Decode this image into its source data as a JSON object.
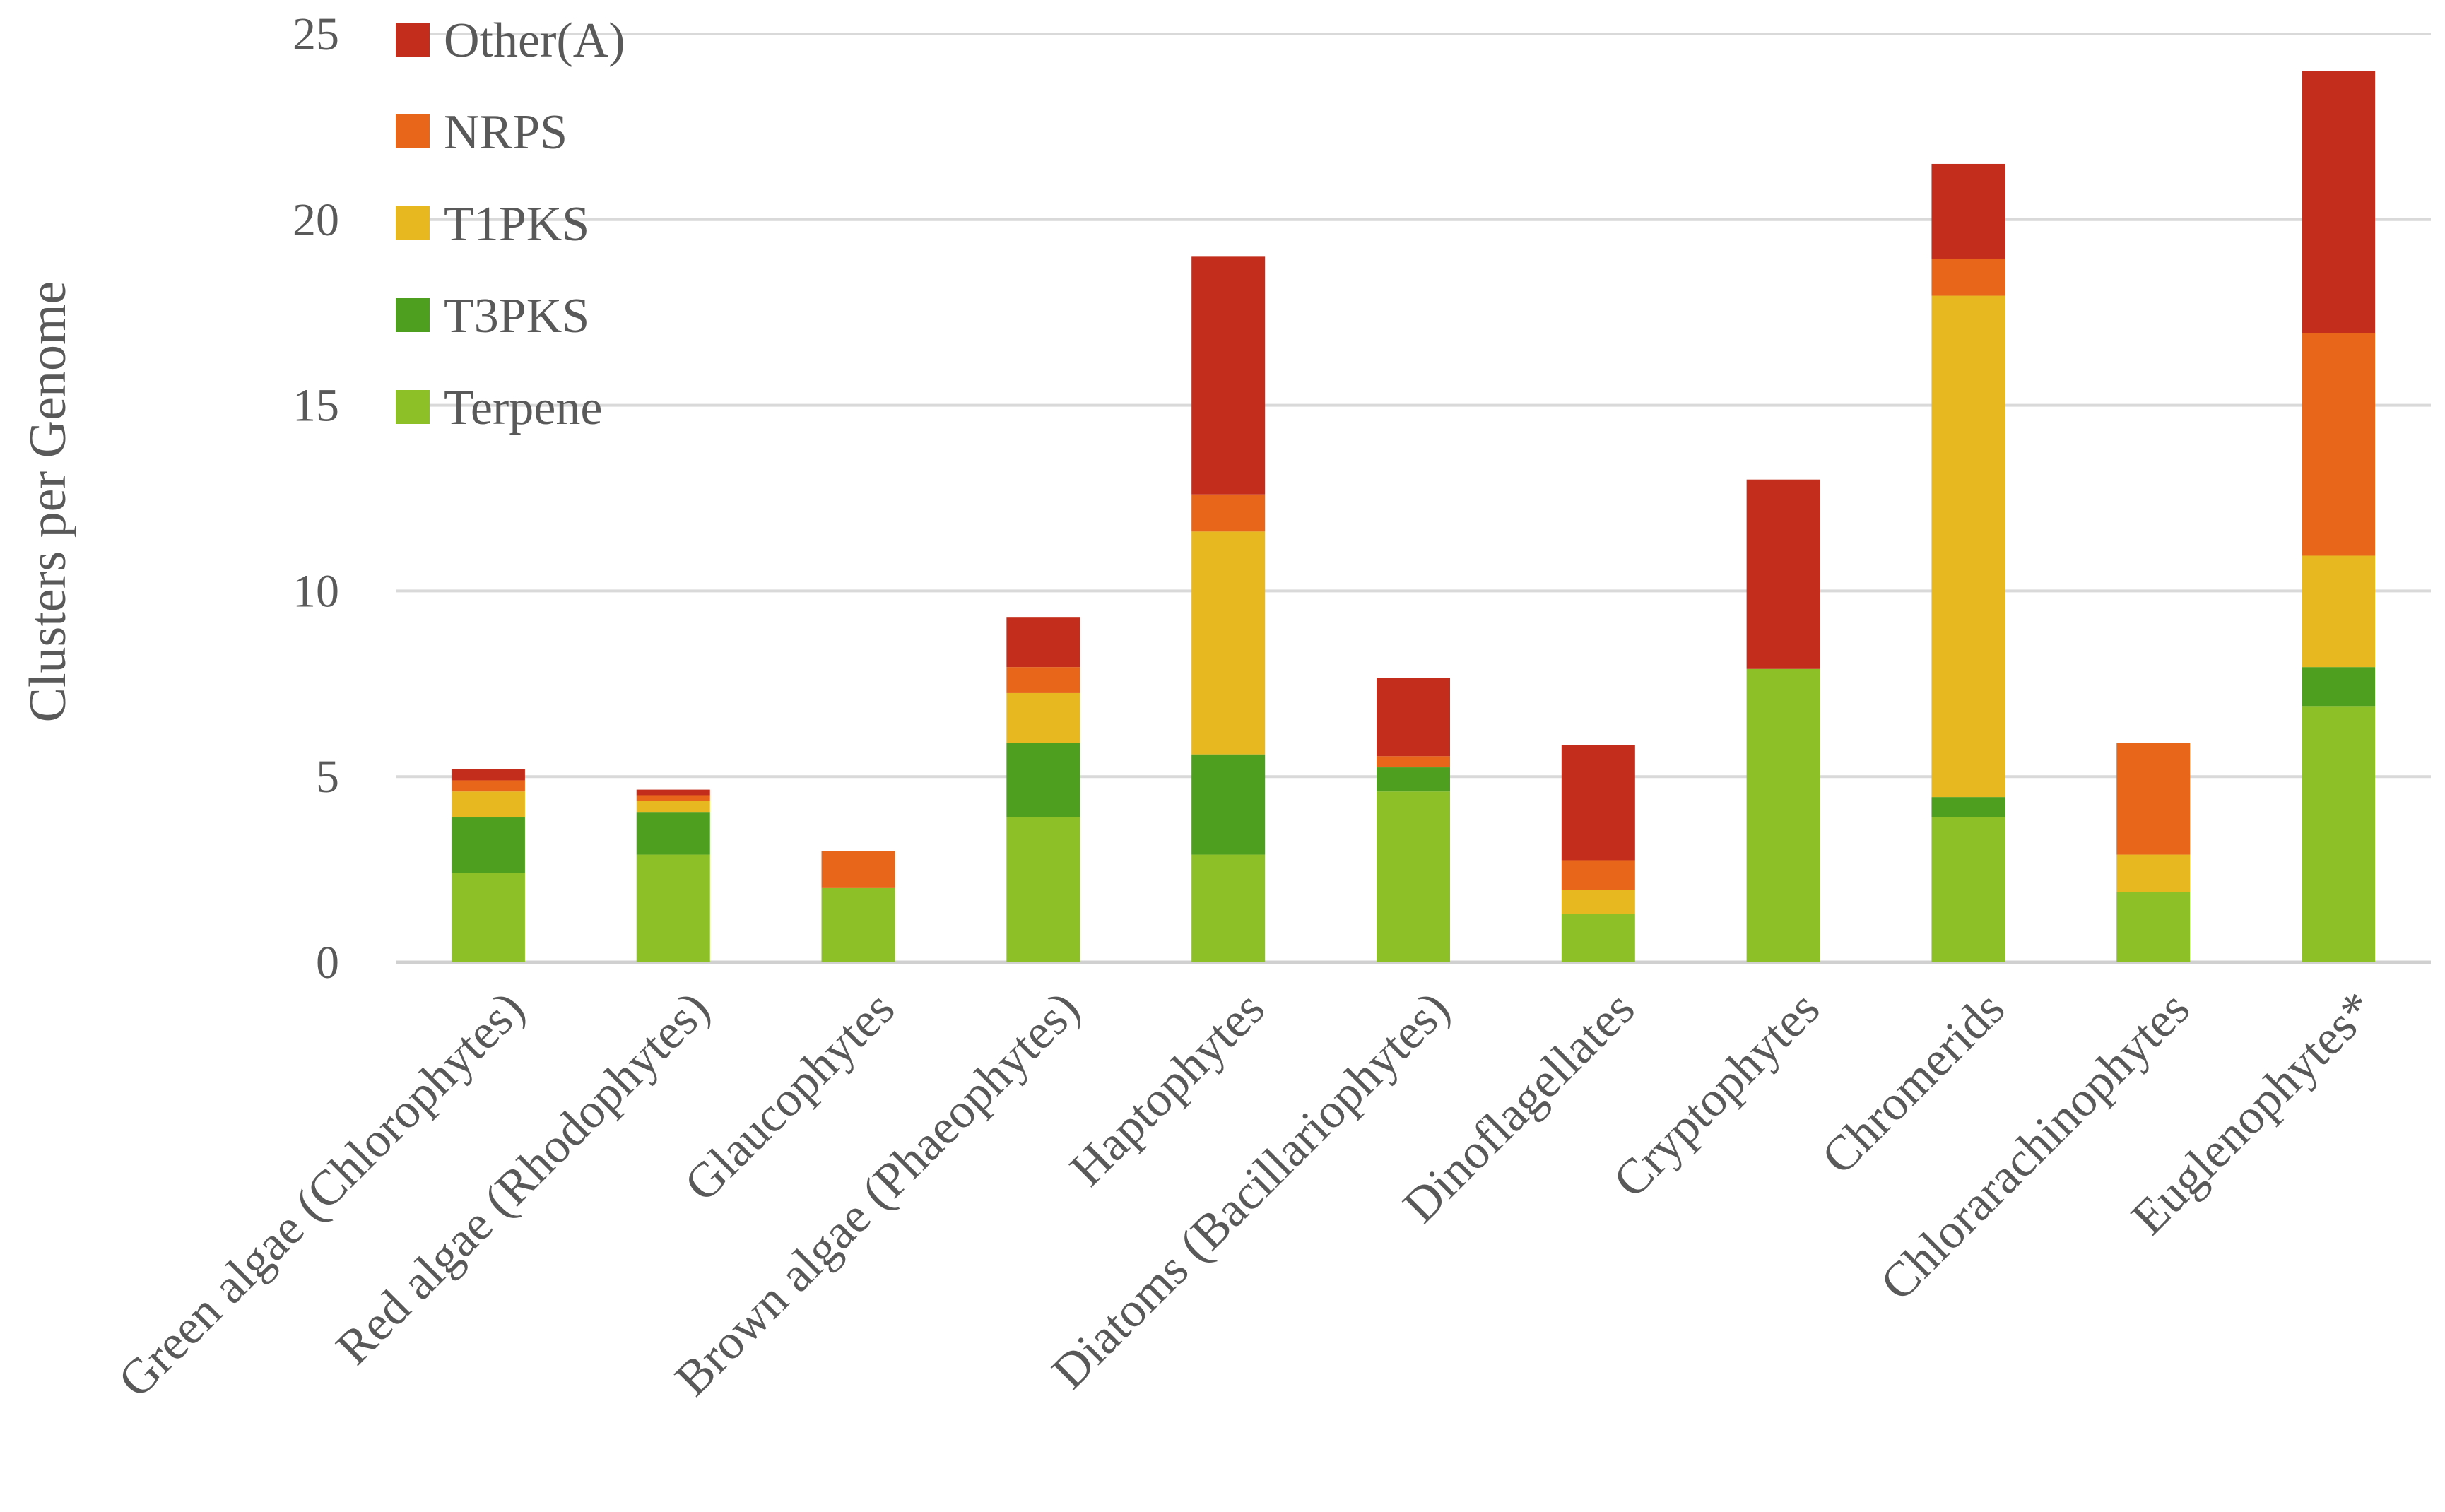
{
  "chart_data": {
    "type": "stacked-bar",
    "title": "",
    "xlabel": "",
    "ylabel": "Clusters per Genome",
    "ylim": [
      0,
      25
    ],
    "yticks": [
      0,
      5,
      10,
      15,
      20,
      25
    ],
    "grid": true,
    "legend_position": "top-left",
    "categories": [
      "Green algae (Chlorophytes)",
      "Red algae (Rhodophytes)",
      "Glaucophytes",
      "Brown algae (Phaeophytes)",
      "Haptophytes",
      "Diatoms (Bacillariophytes)",
      "Dinoflagellates",
      "Cryptophytes",
      "Chromerids",
      "Chlorarachinophytes",
      "Euglenophytes*"
    ],
    "series": [
      {
        "name": "Terpene",
        "color": "#8dc026",
        "values": [
          2.4,
          2.9,
          2.0,
          3.9,
          2.9,
          4.6,
          1.3,
          7.9,
          3.9,
          1.9,
          6.9
        ]
      },
      {
        "name": "T3PKS",
        "color": "#4e9e1f",
        "values": [
          1.5,
          1.15,
          0,
          2.0,
          2.7,
          0.65,
          0,
          0,
          0.55,
          0,
          1.05
        ]
      },
      {
        "name": "T1PKS",
        "color": "#e8b820",
        "values": [
          0.7,
          0.3,
          0,
          1.35,
          6.0,
          0,
          0.65,
          0,
          13.5,
          1.0,
          3.0
        ]
      },
      {
        "name": "NRPS",
        "color": "#e7661a",
        "values": [
          0.3,
          0.15,
          1.0,
          0.7,
          1.0,
          0.3,
          0.8,
          0,
          1.0,
          3.0,
          6.0
        ]
      },
      {
        "name": "Other(A)",
        "color": "#c32d1b",
        "values": [
          0.3,
          0.15,
          0,
          1.35,
          6.4,
          2.1,
          3.1,
          5.1,
          2.55,
          0,
          7.05
        ]
      }
    ],
    "legend_order": [
      "Other(A)",
      "NRPS",
      "T1PKS",
      "T3PKS",
      "Terpene"
    ]
  }
}
